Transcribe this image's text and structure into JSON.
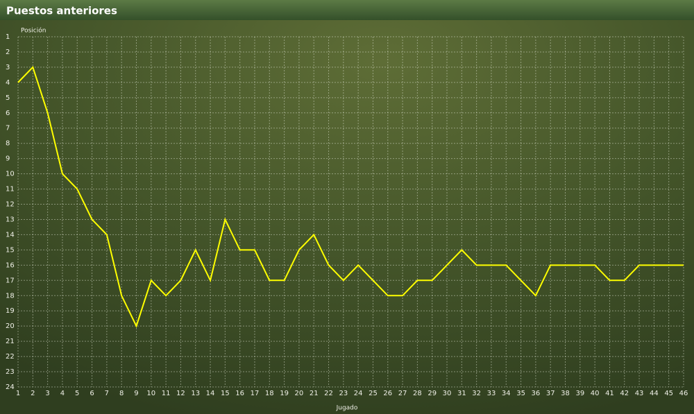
{
  "chart_data": {
    "type": "line",
    "title": "Puestos anteriores",
    "y_label": "Posición",
    "x_label": "Jugado",
    "x": [
      1,
      2,
      3,
      4,
      5,
      6,
      7,
      8,
      9,
      10,
      11,
      12,
      13,
      14,
      15,
      16,
      17,
      18,
      19,
      20,
      21,
      22,
      23,
      24,
      25,
      26,
      27,
      28,
      29,
      30,
      31,
      32,
      33,
      34,
      35,
      36,
      37,
      38,
      39,
      40,
      41,
      42,
      43,
      44,
      45,
      46
    ],
    "values": [
      4,
      3,
      6,
      10,
      11,
      13,
      14,
      18,
      20,
      17,
      18,
      17,
      15,
      17,
      13,
      15,
      15,
      17,
      17,
      15,
      14,
      16,
      17,
      16,
      17,
      18,
      18,
      17,
      17,
      16,
      15,
      16,
      16,
      16,
      17,
      18,
      16,
      16,
      16,
      16,
      17,
      17,
      16,
      16,
      16,
      16
    ],
    "color": "#ffff00",
    "xlim": [
      1,
      46
    ],
    "xticks": [
      1,
      2,
      3,
      4,
      5,
      6,
      7,
      8,
      9,
      10,
      11,
      12,
      13,
      14,
      15,
      16,
      17,
      18,
      19,
      20,
      21,
      22,
      23,
      24,
      25,
      26,
      27,
      28,
      29,
      30,
      31,
      32,
      33,
      34,
      35,
      36,
      37,
      38,
      39,
      40,
      41,
      42,
      43,
      44,
      45,
      46
    ],
    "ylim": [
      1,
      24
    ],
    "yticks": [
      1,
      2,
      3,
      4,
      5,
      6,
      7,
      8,
      9,
      10,
      11,
      12,
      13,
      14,
      15,
      16,
      17,
      18,
      19,
      20,
      21,
      22,
      23,
      24
    ],
    "y_inverted": true,
    "grid": true
  }
}
